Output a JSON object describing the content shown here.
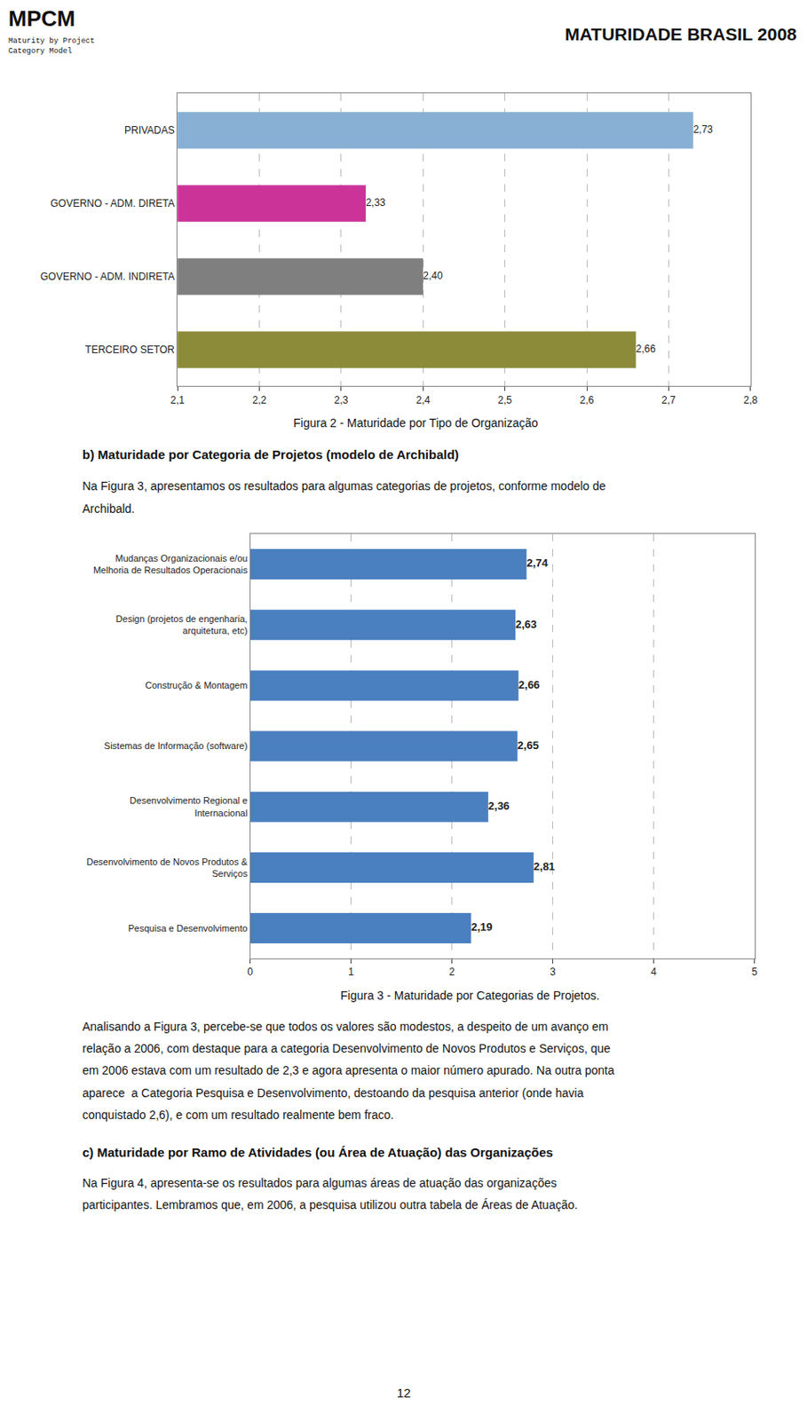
{
  "chart_data": [
    {
      "type": "bar",
      "orientation": "horizontal",
      "categories": [
        "PRIVADAS",
        "GOVERNO - ADM. DIRETA",
        "GOVERNO - ADM. INDIRETA",
        "TERCEIRO SETOR"
      ],
      "values": [
        2.73,
        2.33,
        2.4,
        2.66
      ],
      "value_labels": [
        "2,73",
        "2,33",
        "2,40",
        "2,66"
      ],
      "colors": [
        "#87b0d4",
        "#cc3399",
        "#7f7f7f",
        "#8b8b3a"
      ],
      "xlim": [
        2.1,
        2.8
      ],
      "xticks": [
        {
          "value": 2.1,
          "label": "2,1"
        },
        {
          "value": 2.2,
          "label": "2,2"
        },
        {
          "value": 2.3,
          "label": "2,3"
        },
        {
          "value": 2.4,
          "label": "2,4"
        },
        {
          "value": 2.5,
          "label": "2,5"
        },
        {
          "value": 2.6,
          "label": "2,6"
        },
        {
          "value": 2.7,
          "label": "2,7"
        },
        {
          "value": 2.8,
          "label": "2,8"
        }
      ],
      "grid": true,
      "data_labels": true,
      "annotations": [
        "MPCM",
        "Maturity by Project\nCategory Model",
        "MATURIDADE BRASIL 2008",
        "Figura 2 - Maturidade por Tipo de Organização",
        "b) Maturidade por Categoria de Projetos (modelo de Archibald)",
        "Na Figura 3, apresentamos os resultados para algumas categorias de projetos, conforme modelo de",
        "Archibald."
      ]
    },
    {
      "type": "bar",
      "orientation": "horizontal",
      "categories": [
        "Mudanças Organizacionais e/ou\nMelhoria de Resultados Operacionais",
        "Design (projetos de engenharia,\narquitetura, etc)",
        "Construção & Montagem",
        "Sistemas de Informação (software)",
        "Desenvolvimento Regional e\nInternacional",
        "Desenvolvimento de Novos Produtos &\nServiços",
        "Pesquisa e Desenvolvimento"
      ],
      "values": [
        2.74,
        2.63,
        2.66,
        2.65,
        2.36,
        2.81,
        2.19
      ],
      "value_labels": [
        "2,74",
        "2,63",
        "2,66",
        "2,65",
        "2,36",
        "2,81",
        "2,19"
      ],
      "color": "#4a7fc0",
      "xlim": [
        0,
        5
      ],
      "xticks": [
        0,
        1,
        2,
        3,
        4,
        5
      ],
      "grid": true,
      "data_labels": true,
      "annotations": [
        "Figura 3 - Maturidade por Categorias de Projetos.",
        "Analisando a Figura 3, percebe-se que todos os valores são modestos, a despeito de um avanço em",
        "relação a 2006, com destaque para a categoria Desenvolvimento de Novos Produtos e Serviços, que",
        "em 2006 estava com um resultado de 2,3 e agora apresenta o maior número apurado. Na outra ponta",
        "aparece  a Categoria Pesquisa e Desenvolvimento, destoando da pesquisa anterior (onde havia",
        "conquistado 2,6), e com um resultado realmente bem fraco.",
        "c) Maturidade por Ramo de Atividades (ou Área de Atuação) das Organizações",
        "Na Figura 4, apresenta-se os resultados para algumas áreas de atuação das organizações",
        "participantes. Lembramos que, em 2006, a pesquisa utilizou outra tabela de Áreas de Atuação.",
        "12"
      ]
    }
  ]
}
